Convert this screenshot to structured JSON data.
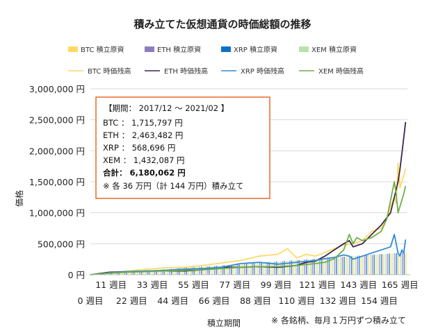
{
  "chart_data": {
    "type": "line",
    "title": "積み立てた仮想通貨の時価総額の推移",
    "xlabel": "積立期間",
    "ylabel": "価格",
    "note": "※ 各銘柄、毎月１万円ずつ積み立て",
    "ylim": [
      0,
      3000000
    ],
    "y_ticks": [
      "3,000,000 円",
      "2,500,000 円",
      "2,000,000 円",
      "1,500,000 円",
      "1,000,000 円",
      "500,000 円",
      "0 円"
    ],
    "y_tick_values": [
      3000000,
      2500000,
      2000000,
      1500000,
      1000000,
      500000,
      0
    ],
    "x_range": [
      0,
      169
    ],
    "x_ticks_odd": [
      "11 週目",
      "33 週目",
      "55 週目",
      "77 週目",
      "99 週目",
      "121 週目",
      "143 週目",
      "165 週目"
    ],
    "x_ticks_even": [
      "0 週目",
      "22 週目",
      "44 週目",
      "66 週目",
      "88 週目",
      "110 週目",
      "132 週目",
      "154 週目"
    ],
    "x_tick_odd_values": [
      11,
      33,
      55,
      77,
      99,
      121,
      143,
      165
    ],
    "x_tick_even_values": [
      0,
      22,
      44,
      66,
      88,
      110,
      132,
      154
    ],
    "legend_placement": "top",
    "legend": {
      "bars": [
        {
          "label": "BTC 積立原資",
          "color": "#ffd966"
        },
        {
          "label": "ETH 積立原資",
          "color": "#8e7cc3"
        },
        {
          "label": "XRP 積立原資",
          "color": "#0b72c9"
        },
        {
          "label": "XEM 積立原資",
          "color": "#b6e3a8"
        }
      ],
      "lines": [
        {
          "label": "BTC 時価残高",
          "color": "#ffd966"
        },
        {
          "label": "ETH 時価残高",
          "color": "#3a2450"
        },
        {
          "label": "XRP 時価残高",
          "color": "#2e8bd6"
        },
        {
          "label": "XEM 時価残高",
          "color": "#70ad47"
        }
      ]
    },
    "bar_series": {
      "name": "積立原資",
      "x_step": 1,
      "x_start": 0,
      "values_rule": "weekly bars, principal grows by 10,000 per month (about 2,300 per week)",
      "principal_final": 360000
    },
    "series": [
      {
        "key": "btc",
        "color": "#ffd966",
        "x": [
          0,
          10,
          20,
          30,
          40,
          50,
          60,
          70,
          80,
          90,
          100,
          105,
          110,
          115,
          120,
          125,
          130,
          135,
          140,
          145,
          150,
          155,
          158,
          160,
          162,
          163,
          164,
          165,
          166,
          167,
          168
        ],
        "y": [
          0,
          30000,
          60000,
          90000,
          110000,
          120000,
          150000,
          190000,
          230000,
          300000,
          330000,
          420000,
          270000,
          330000,
          300000,
          360000,
          420000,
          480000,
          500000,
          550000,
          700000,
          750000,
          900000,
          1100000,
          1250000,
          1150000,
          1800000,
          1400000,
          1500000,
          1600000,
          1715797
        ]
      },
      {
        "key": "eth",
        "color": "#3a2450",
        "x": [
          0,
          10,
          20,
          30,
          40,
          50,
          60,
          70,
          80,
          90,
          100,
          110,
          115,
          120,
          125,
          130,
          135,
          138,
          140,
          145,
          150,
          155,
          160,
          162,
          164,
          165,
          166,
          167,
          168
        ],
        "y": [
          0,
          40000,
          50000,
          60000,
          60000,
          60000,
          80000,
          120000,
          120000,
          130000,
          120000,
          150000,
          200000,
          220000,
          300000,
          400000,
          500000,
          550000,
          450000,
          500000,
          650000,
          800000,
          1000000,
          1250000,
          1500000,
          1700000,
          1950000,
          2200000,
          2463482
        ]
      },
      {
        "key": "xrp",
        "color": "#2e8bd6",
        "x": [
          0,
          10,
          20,
          30,
          40,
          50,
          60,
          70,
          80,
          90,
          100,
          110,
          120,
          125,
          130,
          135,
          138,
          140,
          145,
          150,
          155,
          160,
          162,
          164,
          165,
          166,
          167,
          168
        ],
        "y": [
          0,
          30000,
          50000,
          60000,
          70000,
          90000,
          100000,
          120000,
          180000,
          200000,
          170000,
          200000,
          230000,
          260000,
          280000,
          320000,
          300000,
          250000,
          300000,
          350000,
          400000,
          450000,
          650000,
          350000,
          300000,
          400000,
          350000,
          568696
        ]
      },
      {
        "key": "xem",
        "color": "#70ad47",
        "x": [
          0,
          10,
          20,
          30,
          40,
          50,
          60,
          70,
          80,
          90,
          100,
          110,
          120,
          125,
          130,
          135,
          138,
          140,
          142,
          145,
          150,
          155,
          158,
          160,
          162,
          163,
          164,
          165,
          166,
          167,
          168
        ],
        "y": [
          0,
          25000,
          40000,
          50000,
          60000,
          70000,
          80000,
          100000,
          120000,
          130000,
          130000,
          150000,
          180000,
          200000,
          260000,
          400000,
          650000,
          500000,
          600000,
          550000,
          600000,
          700000,
          900000,
          1200000,
          1500000,
          1300000,
          1000000,
          1100000,
          1200000,
          1300000,
          1432087
        ]
      }
    ],
    "annotation_box": {
      "period": "【期間： 2017/12 ～ 2021/02 】",
      "lines": [
        "BTC ： 1,715,797 円",
        "ETH ： 2,463,482 円",
        "XRP ： 568,696 円",
        "XEM ： 1,432,087 円"
      ],
      "total": "合計： 6,180,062 円",
      "footnote": "※ 各 36 万円（計 144 万円）積み立て",
      "border_color": "#e8682a"
    }
  }
}
